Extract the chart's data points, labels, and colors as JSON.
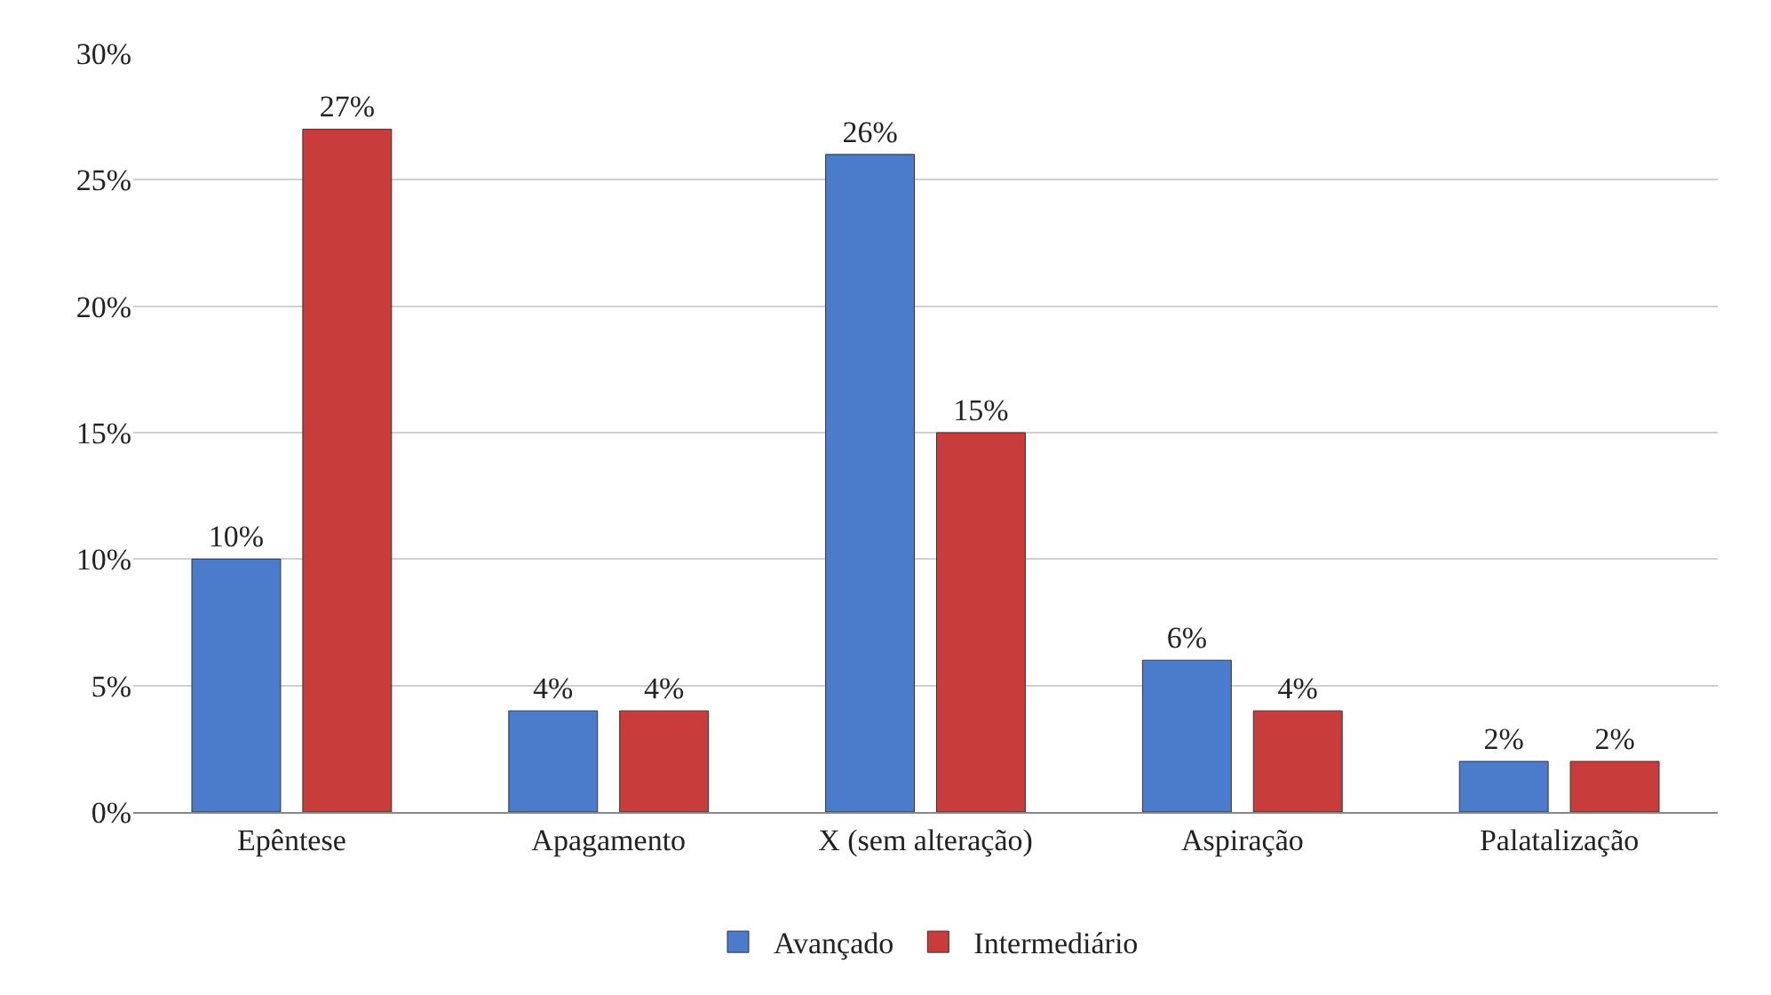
{
  "chart_data": {
    "type": "bar",
    "categories": [
      "Epêntese",
      "Apagamento",
      "X (sem alteração)",
      "Aspiração",
      "Palatalização"
    ],
    "series": [
      {
        "name": "Avançado",
        "color": "#4a7ccb",
        "values": [
          10,
          4,
          26,
          6,
          2
        ],
        "value_labels": [
          "10%",
          "4%",
          "26%",
          "6%",
          "2%"
        ]
      },
      {
        "name": "Intermediário",
        "color": "#c83c3c",
        "values": [
          27,
          4,
          15,
          4,
          2
        ],
        "value_labels": [
          "27%",
          "4%",
          "15%",
          "4%",
          "2%"
        ]
      }
    ],
    "ylim": [
      0,
      30
    ],
    "yticks": [
      {
        "value": 0,
        "label": "0%"
      },
      {
        "value": 5,
        "label": "5%"
      },
      {
        "value": 10,
        "label": "10%"
      },
      {
        "value": 15,
        "label": "15%"
      },
      {
        "value": 20,
        "label": "20%"
      },
      {
        "value": 25,
        "label": "25%"
      },
      {
        "value": 30,
        "label": "30%"
      }
    ],
    "grid": "y",
    "legend": "bottom"
  }
}
